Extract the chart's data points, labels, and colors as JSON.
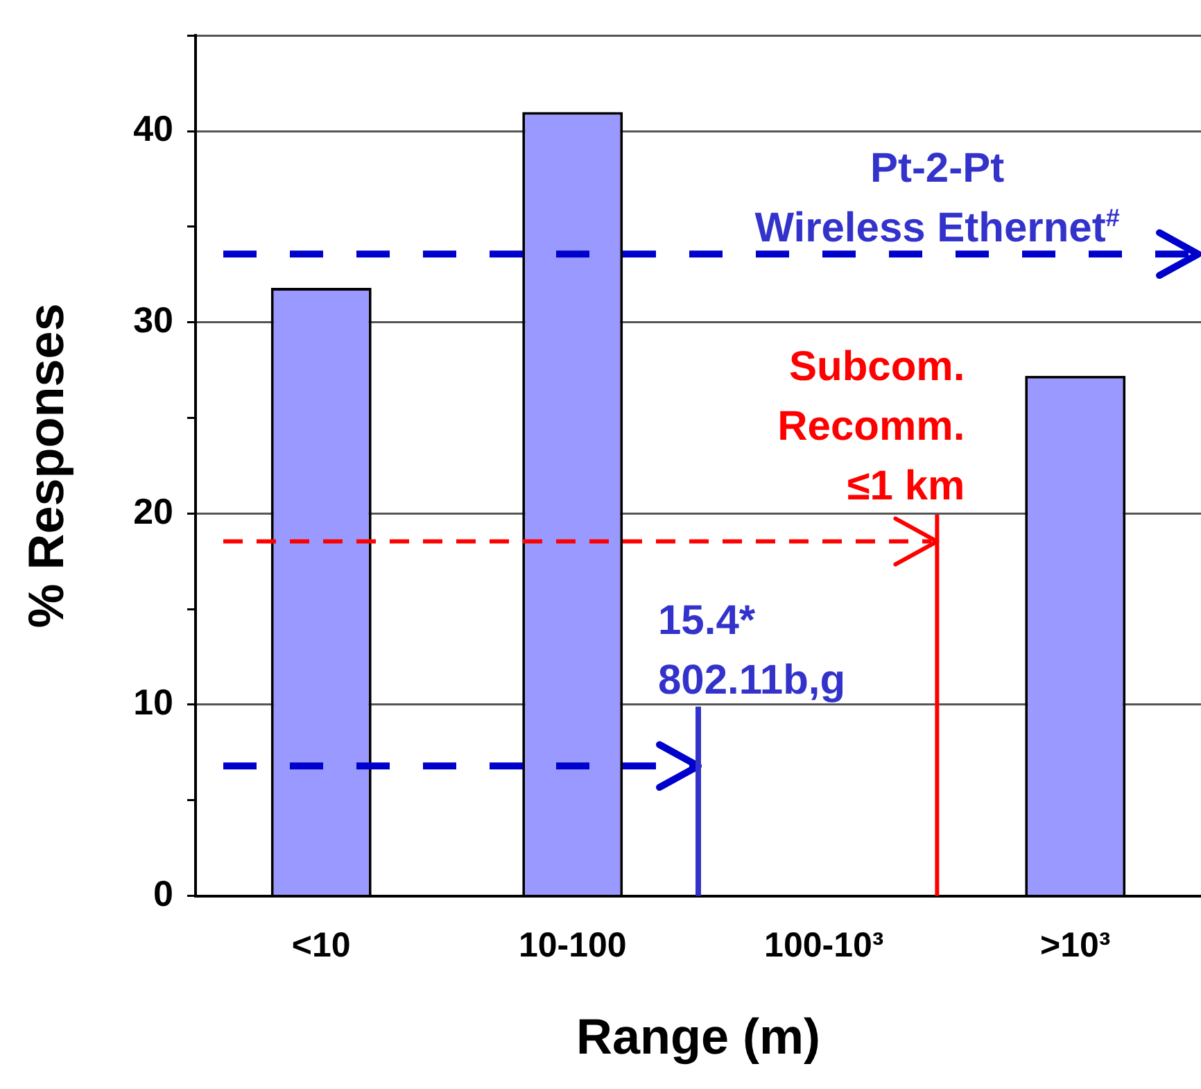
{
  "chart_data": {
    "type": "bar",
    "xlabel": "Range (m)",
    "ylabel": "% Responses",
    "categories": [
      "<10",
      "10-100",
      "100-10³",
      ">10³"
    ],
    "values": [
      31.8,
      41,
      0,
      27.2
    ],
    "color": "#9999ff",
    "ylim": [
      0,
      45
    ],
    "yticks": [
      0,
      {
        "value": 5,
        "label": null
      },
      10,
      {
        "value": 15,
        "label": null
      },
      20,
      {
        "value": 25,
        "label": null
      },
      30,
      {
        "value": 35,
        "label": null
      },
      40,
      {
        "value": 45,
        "label": null
      }
    ],
    "grid": "y",
    "legend": false,
    "annotations": [
      "Pt-2-Pt\nWireless Ethernet$^{#}$",
      "Subcom.\nRecomm.\n≤1 km",
      "15.4*\n802.11b,g"
    ]
  }
}
